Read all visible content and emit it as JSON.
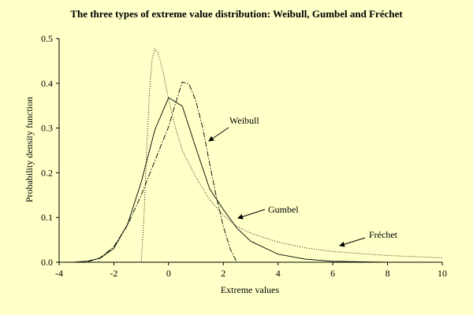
{
  "chart_data": {
    "type": "line",
    "title": "The three types of extreme value distribution: Weibull, Gumbel and Fréchet",
    "xlabel": "Extreme values",
    "ylabel": "Probability density function",
    "xlim": [
      -4,
      10
    ],
    "ylim": [
      0,
      0.5
    ],
    "x_ticks": [
      -4,
      -2,
      0,
      2,
      4,
      6,
      8,
      10
    ],
    "y_ticks": [
      0.0,
      0.1,
      0.2,
      0.3,
      0.4,
      0.5
    ],
    "x_tick_labels": [
      "-4",
      "-2",
      "0",
      "2",
      "4",
      "6",
      "8",
      "10"
    ],
    "y_tick_labels": [
      "0.0",
      "0.1",
      "0.2",
      "0.3",
      "0.4",
      "0.5"
    ],
    "grid": false,
    "legend": "none",
    "series": [
      {
        "name": "Gumbel",
        "style": "solid",
        "x": [
          -4,
          -3.5,
          -3,
          -2.5,
          -2,
          -1.5,
          -1,
          -0.5,
          0,
          0.5,
          1,
          1.5,
          2,
          2.5,
          3,
          4,
          5,
          6,
          7,
          8
        ],
        "y": [
          0.0,
          0.0,
          0.002,
          0.009,
          0.031,
          0.085,
          0.179,
          0.296,
          0.368,
          0.349,
          0.255,
          0.164,
          0.118,
          0.076,
          0.047,
          0.018,
          0.007,
          0.002,
          0.001,
          0.0
        ]
      },
      {
        "name": "Weibull",
        "style": "dashdot",
        "x": [
          -4,
          -3,
          -2.5,
          -2,
          -1.5,
          -1,
          -0.5,
          0,
          0.25,
          0.5,
          0.75,
          1,
          1.25,
          1.5,
          1.75,
          2,
          2.25,
          2.5
        ],
        "y": [
          0.0,
          0.0,
          0.01,
          0.035,
          0.083,
          0.15,
          0.227,
          0.303,
          0.355,
          0.403,
          0.398,
          0.36,
          0.3,
          0.22,
          0.145,
          0.08,
          0.03,
          0.0
        ]
      },
      {
        "name": "Fréchet",
        "style": "dotted",
        "x": [
          -1.05,
          -1.0,
          -0.9,
          -0.8,
          -0.7,
          -0.6,
          -0.5,
          -0.4,
          -0.3,
          -0.2,
          -0.1,
          0,
          0.2,
          0.5,
          1,
          1.5,
          2,
          2.5,
          3,
          4,
          5,
          6,
          8,
          10
        ],
        "y": [
          0.0,
          0.0,
          0.1,
          0.25,
          0.38,
          0.455,
          0.477,
          0.47,
          0.45,
          0.425,
          0.395,
          0.365,
          0.312,
          0.25,
          0.19,
          0.14,
          0.105,
          0.08,
          0.065,
          0.045,
          0.032,
          0.024,
          0.015,
          0.01
        ]
      }
    ],
    "annotations": [
      {
        "text": "Weibull",
        "series": "Weibull"
      },
      {
        "text": "Gumbel",
        "series": "Gumbel"
      },
      {
        "text": "Fréchet",
        "series": "Fréchet"
      }
    ]
  }
}
